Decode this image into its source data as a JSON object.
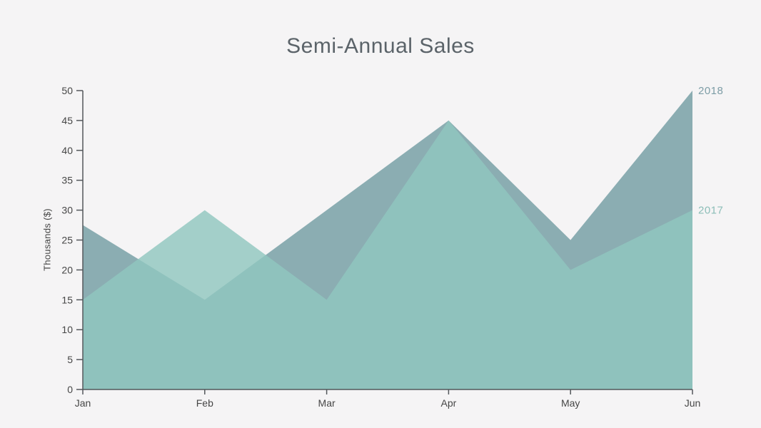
{
  "chart_data": {
    "type": "area",
    "title": "Semi-Annual Sales",
    "xlabel": "",
    "ylabel": "Thousands ($)",
    "categories": [
      "Jan",
      "Feb",
      "Mar",
      "Apr",
      "May",
      "Jun"
    ],
    "series": [
      {
        "name": "2018",
        "values": [
          27.5,
          15,
          30,
          45,
          25,
          50
        ],
        "fill": "#8badb2",
        "fill_opacity": 1,
        "label_color": "#7d9da6"
      },
      {
        "name": "2017",
        "values": [
          15,
          30,
          15,
          45,
          20,
          30
        ],
        "fill": "#90c6bf",
        "fill_opacity": 0.81,
        "label_color": "#8cbeb8"
      }
    ],
    "ylim": [
      0,
      50
    ],
    "yticks": [
      0,
      5,
      10,
      15,
      20,
      25,
      30,
      35,
      40,
      45,
      50
    ],
    "grid": false,
    "legend_position": "series-end-labels"
  },
  "colors": {
    "background": "#f5f4f5",
    "title_text": "#5b6369",
    "axis_line": "#53575b",
    "tick_text": "#464646"
  }
}
